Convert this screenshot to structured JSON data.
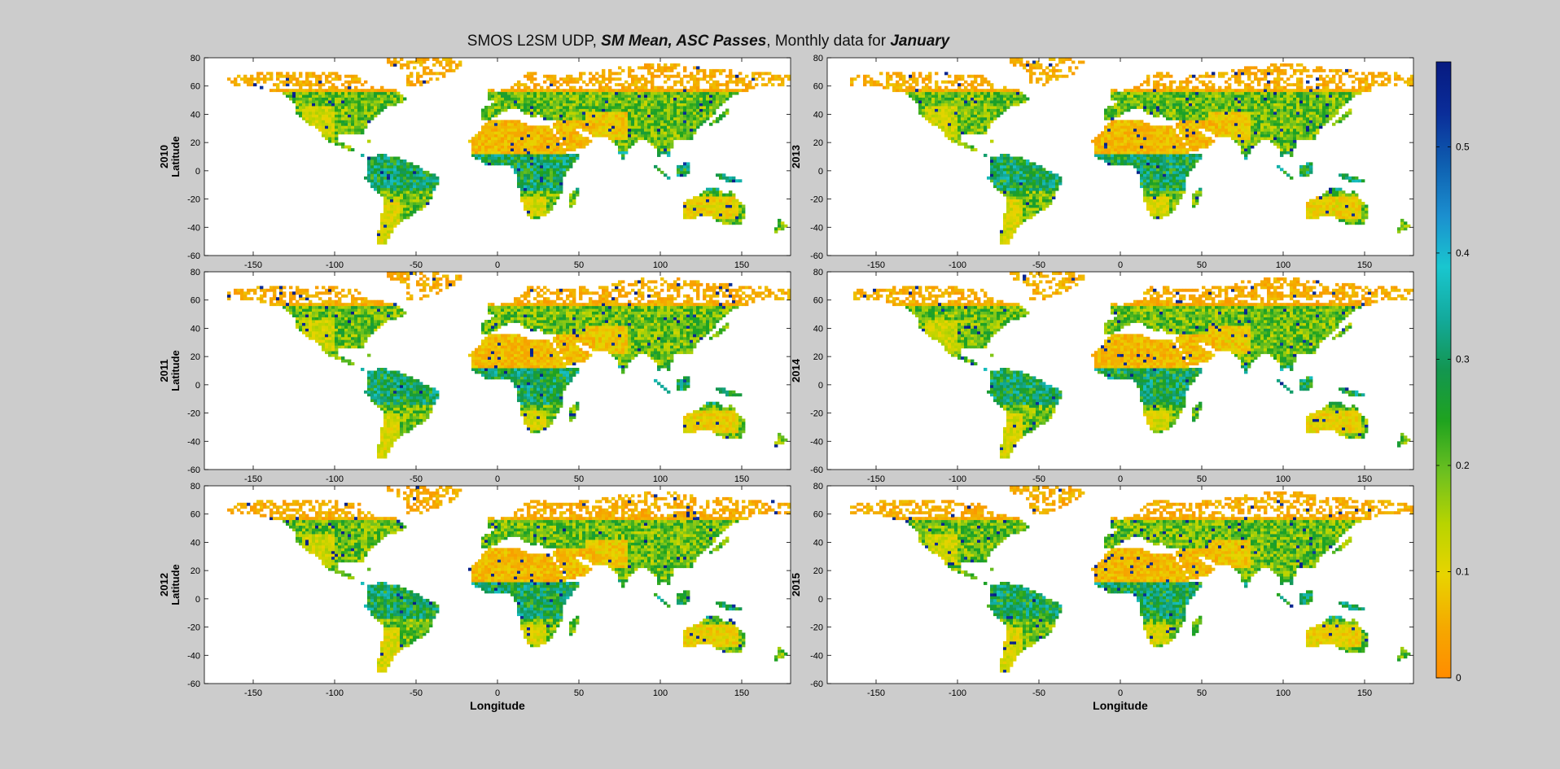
{
  "title": {
    "part1": "SMOS L2SM UDP, ",
    "part2": "SM Mean, ASC Passes",
    "part3": ", Monthly data for ",
    "part4": "January"
  },
  "colors": {
    "background": "#cccccc",
    "colormap": [
      "#ff8c00",
      "#f5a900",
      "#e8d400",
      "#b8d400",
      "#6dc020",
      "#1fa31f",
      "#139650",
      "#13aa9c",
      "#19c6cf",
      "#1b8fcf",
      "#0e5fb0",
      "#0a2d99",
      "#071a80"
    ]
  },
  "chart_data": {
    "type": "heatmap",
    "description_of_content": "",
    "xlabel": "Longitude",
    "ylabel": "Latitude",
    "xlim": [
      -180,
      180
    ],
    "ylim": [
      -60,
      80
    ],
    "xticks": [
      -150,
      -100,
      -50,
      0,
      50,
      100,
      150
    ],
    "yticks": [
      80,
      60,
      40,
      20,
      0,
      -20,
      -40,
      -60
    ],
    "colorbar": {
      "range": [
        0,
        0.58
      ],
      "ticks": [
        0,
        0.1,
        0.2,
        0.3,
        0.4,
        0.5
      ],
      "tick_labels": [
        "0",
        "0.1",
        "0.2",
        "0.3",
        "0.4",
        "0.5"
      ]
    },
    "panels": [
      {
        "year": "2010",
        "col": 0,
        "row": 0
      },
      {
        "year": "2011",
        "col": 0,
        "row": 1
      },
      {
        "year": "2012",
        "col": 0,
        "row": 2
      },
      {
        "year": "2013",
        "col": 1,
        "row": 0
      },
      {
        "year": "2014",
        "col": 1,
        "row": 1
      },
      {
        "year": "2015",
        "col": 1,
        "row": 2
      }
    ],
    "regions": [
      {
        "name": "north-america",
        "poly": [
          [
            -168,
            66
          ],
          [
            -140,
            70
          ],
          [
            -110,
            70
          ],
          [
            -85,
            68
          ],
          [
            -78,
            60
          ],
          [
            -62,
            58
          ],
          [
            -55,
            50
          ],
          [
            -67,
            45
          ],
          [
            -76,
            38
          ],
          [
            -81,
            30
          ],
          [
            -82,
            25
          ],
          [
            -97,
            26
          ],
          [
            -97,
            20
          ],
          [
            -90,
            18
          ],
          [
            -83,
            10
          ],
          [
            -78,
            8
          ],
          [
            -86,
            13
          ],
          [
            -94,
            16
          ],
          [
            -105,
            22
          ],
          [
            -112,
            31
          ],
          [
            -118,
            34
          ],
          [
            -124,
            41
          ],
          [
            -124,
            48
          ],
          [
            -132,
            55
          ],
          [
            -150,
            60
          ],
          [
            -165,
            60
          ]
        ]
      },
      {
        "name": "greenland",
        "poly": [
          [
            -55,
            60
          ],
          [
            -45,
            60
          ],
          [
            -30,
            68
          ],
          [
            -20,
            76
          ],
          [
            -35,
            82
          ],
          [
            -60,
            82
          ],
          [
            -70,
            78
          ],
          [
            -57,
            70
          ]
        ]
      },
      {
        "name": "south-america",
        "poly": [
          [
            -80,
            9
          ],
          [
            -72,
            12
          ],
          [
            -62,
            10
          ],
          [
            -52,
            5
          ],
          [
            -35,
            -5
          ],
          [
            -39,
            -15
          ],
          [
            -42,
            -23
          ],
          [
            -48,
            -28
          ],
          [
            -57,
            -35
          ],
          [
            -63,
            -40
          ],
          [
            -66,
            -47
          ],
          [
            -69,
            -53
          ],
          [
            -74,
            -52
          ],
          [
            -73,
            -42
          ],
          [
            -71,
            -30
          ],
          [
            -70,
            -18
          ],
          [
            -76,
            -14
          ],
          [
            -81,
            -5
          ]
        ]
      },
      {
        "name": "eurasia",
        "poly": [
          [
            -10,
            36
          ],
          [
            -9,
            44
          ],
          [
            -2,
            48
          ],
          [
            -4,
            55
          ],
          [
            5,
            58
          ],
          [
            10,
            60
          ],
          [
            20,
            70
          ],
          [
            40,
            68
          ],
          [
            60,
            70
          ],
          [
            75,
            73
          ],
          [
            100,
            77
          ],
          [
            130,
            72
          ],
          [
            160,
            70
          ],
          [
            180,
            68
          ],
          [
            180,
            60
          ],
          [
            160,
            60
          ],
          [
            142,
            52
          ],
          [
            135,
            43
          ],
          [
            128,
            35
          ],
          [
            122,
            30
          ],
          [
            120,
            22
          ],
          [
            108,
            21
          ],
          [
            106,
            10
          ],
          [
            100,
            13
          ],
          [
            100,
            5
          ],
          [
            98,
            16
          ],
          [
            92,
            22
          ],
          [
            88,
            22
          ],
          [
            80,
            15
          ],
          [
            77,
            8
          ],
          [
            72,
            20
          ],
          [
            67,
            25
          ],
          [
            58,
            25
          ],
          [
            56,
            27
          ],
          [
            50,
            30
          ],
          [
            48,
            28
          ],
          [
            56,
            23
          ],
          [
            58,
            20
          ],
          [
            52,
            16
          ],
          [
            43,
            13
          ],
          [
            36,
            28
          ],
          [
            34,
            31
          ],
          [
            36,
            36
          ],
          [
            28,
            37
          ],
          [
            26,
            40
          ],
          [
            22,
            37
          ],
          [
            18,
            40
          ],
          [
            12,
            44
          ],
          [
            9,
            44
          ],
          [
            3,
            42
          ],
          [
            0,
            38
          ],
          [
            -6,
            36
          ]
        ]
      },
      {
        "name": "africa",
        "poly": [
          [
            -17,
            21
          ],
          [
            -10,
            30
          ],
          [
            -5,
            35
          ],
          [
            10,
            37
          ],
          [
            20,
            32
          ],
          [
            32,
            31
          ],
          [
            35,
            27
          ],
          [
            43,
            12
          ],
          [
            51,
            11
          ],
          [
            45,
            2
          ],
          [
            40,
            -5
          ],
          [
            40,
            -15
          ],
          [
            35,
            -25
          ],
          [
            30,
            -32
          ],
          [
            20,
            -35
          ],
          [
            18,
            -30
          ],
          [
            14,
            -20
          ],
          [
            12,
            -5
          ],
          [
            9,
            3
          ],
          [
            0,
            5
          ],
          [
            -8,
            5
          ],
          [
            -15,
            10
          ]
        ]
      },
      {
        "name": "madagascar",
        "poly": [
          [
            44,
            -25
          ],
          [
            47,
            -25
          ],
          [
            50,
            -15
          ],
          [
            49,
            -12
          ],
          [
            44,
            -17
          ]
        ]
      },
      {
        "name": "australia",
        "poly": [
          [
            114,
            -22
          ],
          [
            122,
            -18
          ],
          [
            130,
            -12
          ],
          [
            136,
            -12
          ],
          [
            140,
            -17
          ],
          [
            144,
            -14
          ],
          [
            146,
            -19
          ],
          [
            153,
            -26
          ],
          [
            150,
            -37
          ],
          [
            140,
            -38
          ],
          [
            130,
            -32
          ],
          [
            115,
            -34
          ]
        ]
      },
      {
        "name": "indonesia-sumatra",
        "poly": [
          [
            95,
            5
          ],
          [
            104,
            -3
          ],
          [
            106,
            -6
          ],
          [
            100,
            0
          ]
        ]
      },
      {
        "name": "indonesia-borneo",
        "poly": [
          [
            109,
            2
          ],
          [
            117,
            7
          ],
          [
            119,
            1
          ],
          [
            116,
            -4
          ],
          [
            110,
            -3
          ]
        ]
      },
      {
        "name": "new-guinea",
        "poly": [
          [
            131,
            -1
          ],
          [
            141,
            -3
          ],
          [
            150,
            -7
          ],
          [
            143,
            -9
          ],
          [
            137,
            -5
          ]
        ]
      },
      {
        "name": "uk",
        "poly": [
          [
            -6,
            50
          ],
          [
            2,
            52
          ],
          [
            -2,
            58
          ],
          [
            -6,
            57
          ]
        ]
      },
      {
        "name": "japan",
        "poly": [
          [
            130,
            32
          ],
          [
            136,
            35
          ],
          [
            142,
            40
          ],
          [
            141,
            44
          ],
          [
            138,
            40
          ]
        ]
      },
      {
        "name": "nz",
        "poly": [
          [
            172,
            -34
          ],
          [
            178,
            -39
          ],
          [
            174,
            -42
          ],
          [
            167,
            -46
          ],
          [
            171,
            -41
          ]
        ]
      },
      {
        "name": "cuba",
        "poly": [
          [
            -85,
            22
          ],
          [
            -74,
            20
          ],
          [
            -78,
            21
          ],
          [
            -84,
            23
          ]
        ]
      }
    ],
    "value_profile": {
      "dry_zones": [
        {
          "lon": [
            -17,
            60
          ],
          "lat": [
            12,
            35
          ],
          "mean": 0.03
        },
        {
          "lon": [
            55,
            80
          ],
          "lat": [
            23,
            42
          ],
          "mean": 0.05
        },
        {
          "lon": [
            115,
            148
          ],
          "lat": [
            -33,
            -19
          ],
          "mean": 0.06
        },
        {
          "lon": [
            -120,
            -100
          ],
          "lat": [
            25,
            45
          ],
          "mean": 0.09
        },
        {
          "lon": [
            12,
            30
          ],
          "lat": [
            -32,
            -18
          ],
          "mean": 0.08
        },
        {
          "lon": [
            -75,
            -60
          ],
          "lat": [
            -52,
            -20
          ],
          "mean": 0.08
        }
      ],
      "high_latitude_mean": 0.02,
      "tropics_mean": 0.25,
      "wet_spots_mean": 0.52
    }
  }
}
